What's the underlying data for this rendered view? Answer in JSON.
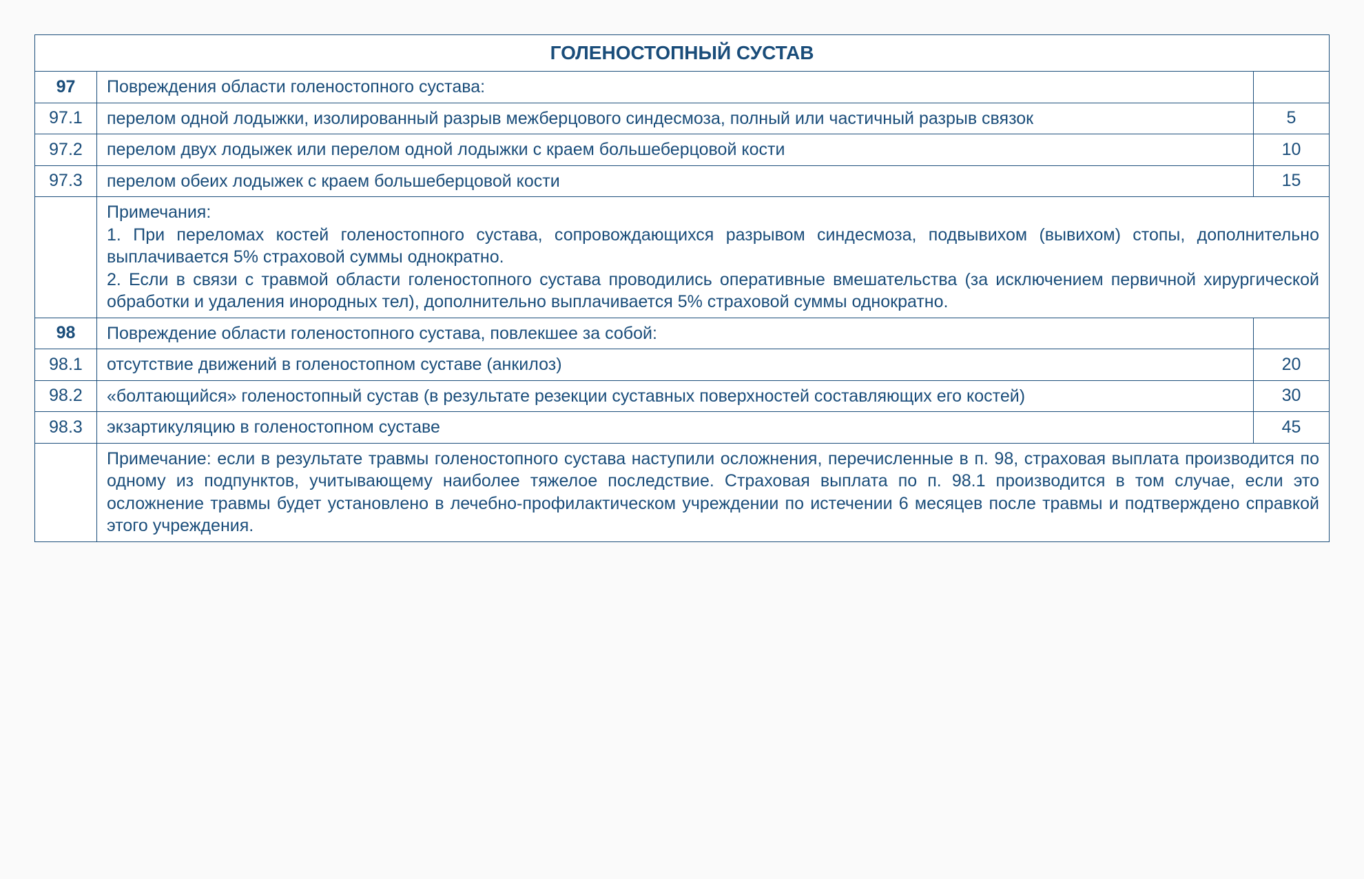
{
  "table": {
    "header": "ГОЛЕНОСТОПНЫЙ СУСТАВ",
    "border_color": "#1a4d7a",
    "text_color": "#1a4d7a",
    "background_color": "#ffffff",
    "header_fontsize": 28,
    "body_fontsize": 25,
    "col_widths": {
      "code": 90,
      "value": 110
    },
    "rows": [
      {
        "code": "97",
        "code_bold": true,
        "desc": "Повреждения области голеностопного сустава:",
        "value": "",
        "justify": false
      },
      {
        "code": "97.1",
        "code_bold": false,
        "desc": "перелом одной лодыжки, изолированный разрыв межберцового синдесмоза, полный или частичный разрыв связок",
        "value": "5",
        "justify": false
      },
      {
        "code": "97.2",
        "code_bold": false,
        "desc": "перелом двух лодыжек или перелом одной лодыжки с краем большеберцовой кости",
        "value": "10",
        "justify": false
      },
      {
        "code": "97.3",
        "code_bold": false,
        "desc": "перелом обеих лодыжек с краем большеберцовой кости",
        "value": "15",
        "justify": false
      },
      {
        "type": "note",
        "code": "",
        "desc": "Примечания:\n1. При переломах костей голеностопного сустава, сопровождающихся разрывом синдесмоза, подвывихом (вывихом) стопы, дополнительно выплачивается 5% страховой суммы однократно.\n2. Если в связи с травмой области голеностопного сустава проводились оперативные вмешательства (за исключением первичной хирургической обработки и удаления инородных тел), дополнительно выплачивается 5% страховой суммы однократно."
      },
      {
        "code": "98",
        "code_bold": true,
        "desc": "Повреждение области голеностопного сустава, повлекшее за собой:",
        "value": "",
        "justify": false
      },
      {
        "code": "98.1",
        "code_bold": false,
        "desc": "отсутствие движений в голеностопном суставе (анкилоз)",
        "value": "20",
        "justify": false
      },
      {
        "code": "98.2",
        "code_bold": false,
        "desc": "«болтающийся» голеностопный сустав (в результате резекции суставных поверхностей составляющих его костей)",
        "value": "30",
        "justify": true
      },
      {
        "code": "98.3",
        "code_bold": false,
        "desc": "экзартикуляцию в голеностопном суставе",
        "value": "45",
        "justify": false
      },
      {
        "type": "note",
        "code": "",
        "desc": "Примечание: если в результате травмы голеностопного сустава наступили осложнения, перечисленные в п. 98, страховая выплата производится по одному из подпунктов, учитывающему наиболее тяжелое последствие. Страховая выплата по п. 98.1 производится в том случае, если это осложнение травмы будет установлено в лечебно-профилактическом учреждении по истечении 6 месяцев после травмы и подтверждено справкой этого учреждения."
      }
    ]
  }
}
